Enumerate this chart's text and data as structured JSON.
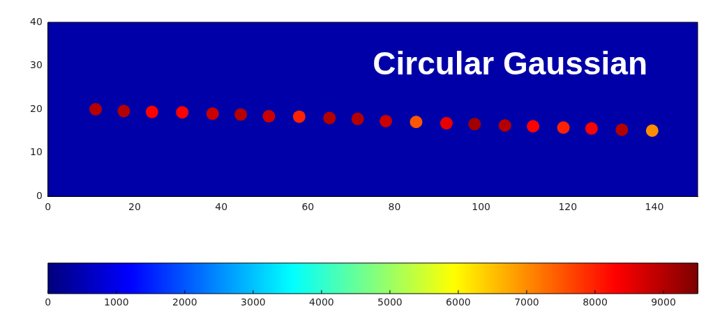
{
  "chart_data": {
    "type": "scatter",
    "title": "Circular Gaussian",
    "x": [
      11,
      17.5,
      24,
      31,
      38,
      44.5,
      51,
      58,
      65,
      71.5,
      78,
      85,
      92,
      98.5,
      105.5,
      112,
      119,
      125.5,
      132.5,
      139.5
    ],
    "values": [
      20,
      19.6,
      19.4,
      19.3,
      19,
      18.8,
      18.4,
      18.3,
      18,
      17.8,
      17.3,
      17.1,
      16.8,
      16.6,
      16.3,
      16.1,
      15.8,
      15.6,
      15.3,
      15.1
    ],
    "cvalues": [
      9000,
      9000,
      8300,
      8300,
      8800,
      9000,
      8800,
      8000,
      9000,
      9000,
      8800,
      7500,
      8500,
      9200,
      9000,
      8300,
      8000,
      8300,
      9000,
      7000
    ],
    "xlim": [
      0,
      150
    ],
    "xticks": [
      0,
      20,
      40,
      60,
      80,
      100,
      120,
      140
    ],
    "ylim": [
      0,
      40
    ],
    "yticks": [
      0,
      10,
      20,
      30,
      40
    ],
    "clim": [
      0,
      9500
    ],
    "cticks": [
      0,
      1000,
      2000,
      3000,
      4000,
      5000,
      6000,
      7000,
      8000,
      9000
    ],
    "grid": false,
    "legend": false,
    "marker": "circle"
  }
}
